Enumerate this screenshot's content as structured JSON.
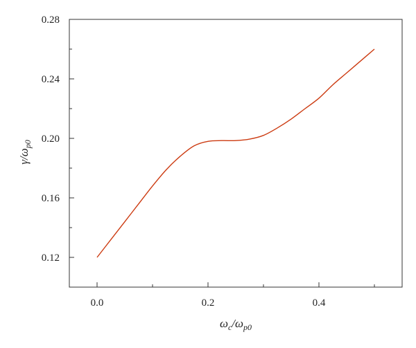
{
  "chart_data": {
    "type": "line",
    "title": "",
    "xlabel": {
      "main": "ω",
      "sub": "c",
      "sep": "/",
      "main2": "ω",
      "sub2": "p0"
    },
    "ylabel": {
      "main": "γ",
      "sep": "/",
      "main2": "ω",
      "sub2": "p0"
    },
    "xlim": [
      -0.05,
      0.55
    ],
    "ylim": [
      0.1,
      0.28
    ],
    "xticks": [
      0.0,
      0.2,
      0.4
    ],
    "xtick_labels": [
      "0.0",
      "0.2",
      "0.4"
    ],
    "xminor_ticks": [
      0.1,
      0.3,
      0.5
    ],
    "yticks": [
      0.12,
      0.16,
      0.2,
      0.24,
      0.28
    ],
    "ytick_labels": [
      "0.12",
      "0.16",
      "0.20",
      "0.24",
      "0.28"
    ],
    "yminor_ticks": [
      0.14,
      0.18,
      0.22,
      0.26
    ],
    "grid": false,
    "series": [
      {
        "color": "#cc3a10",
        "x": [
          0.0,
          0.025,
          0.05,
          0.075,
          0.1,
          0.125,
          0.15,
          0.175,
          0.2,
          0.225,
          0.25,
          0.275,
          0.3,
          0.325,
          0.35,
          0.375,
          0.4,
          0.425,
          0.45,
          0.475,
          0.5
        ],
        "y": [
          0.12,
          0.132,
          0.144,
          0.156,
          0.168,
          0.179,
          0.188,
          0.195,
          0.198,
          0.1985,
          0.1985,
          0.1995,
          0.202,
          0.207,
          0.213,
          0.22,
          0.227,
          0.236,
          0.244,
          0.252,
          0.26
        ]
      }
    ]
  }
}
